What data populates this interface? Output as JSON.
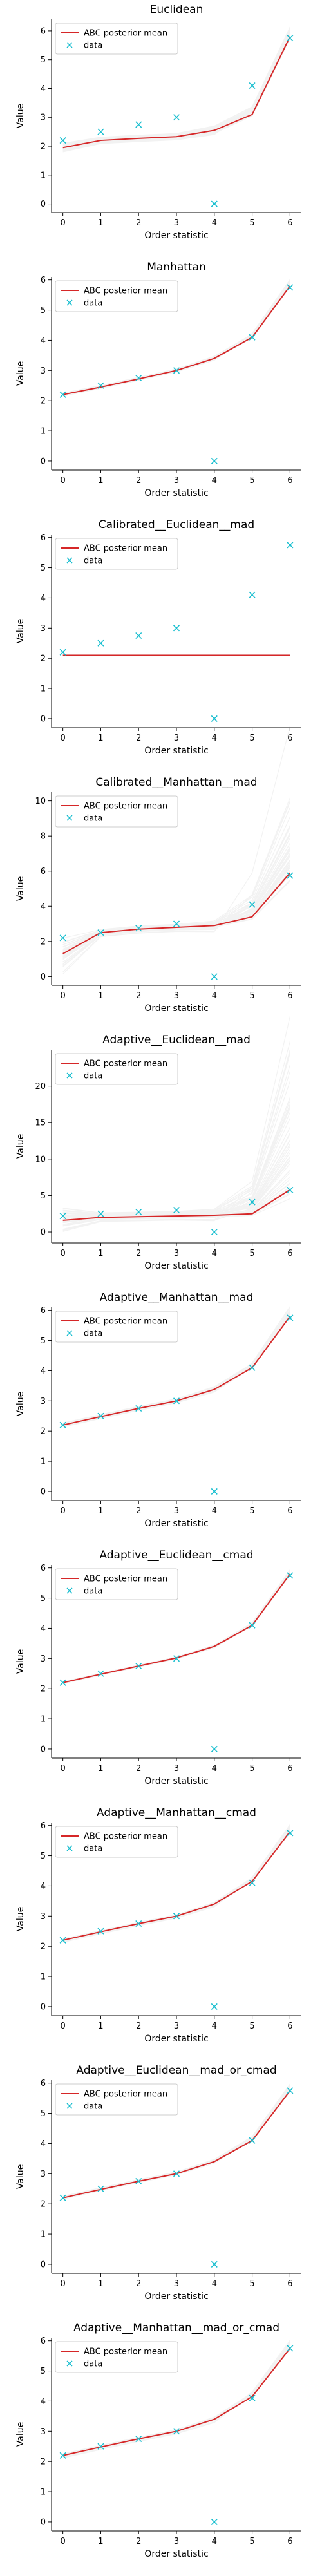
{
  "figure": {
    "legend_labels": [
      "ABC posterior mean",
      "data"
    ],
    "colors": {
      "posterior_mean": "#d62728",
      "data": "#17becf",
      "samples": "#555555",
      "axis": "#000000"
    }
  },
  "chart_data": [
    {
      "type": "line",
      "title": "Euclidean",
      "xlabel": "Order statistic",
      "ylabel": "Value",
      "x": [
        0,
        1,
        2,
        3,
        4,
        5,
        6
      ],
      "xlim": [
        -0.3,
        6.3
      ],
      "ylim": [
        -0.3,
        6.4
      ],
      "yticks": [
        0,
        1,
        2,
        3,
        4,
        5,
        6
      ],
      "grid": false,
      "legend": "top-left",
      "series": [
        {
          "name": "ABC posterior mean",
          "values": [
            1.95,
            2.2,
            2.27,
            2.33,
            2.55,
            3.1,
            5.8
          ]
        },
        {
          "name": "data",
          "marker": "x",
          "values": [
            2.2,
            2.5,
            2.75,
            3.0,
            0.0,
            4.1,
            5.75
          ]
        }
      ],
      "spread": [
        0.08,
        0.06,
        0.06,
        0.06,
        0.08,
        0.12,
        0.15
      ]
    },
    {
      "type": "line",
      "title": "Manhattan",
      "xlabel": "Order statistic",
      "ylabel": "Value",
      "x": [
        0,
        1,
        2,
        3,
        4,
        5,
        6
      ],
      "xlim": [
        -0.3,
        6.3
      ],
      "ylim": [
        -0.3,
        6.1
      ],
      "yticks": [
        0,
        1,
        2,
        3,
        4,
        5,
        6
      ],
      "grid": false,
      "legend": "top-left",
      "series": [
        {
          "name": "ABC posterior mean",
          "values": [
            2.2,
            2.45,
            2.72,
            3.0,
            3.4,
            4.1,
            5.8
          ]
        },
        {
          "name": "data",
          "marker": "x",
          "values": [
            2.2,
            2.5,
            2.75,
            3.0,
            0.0,
            4.1,
            5.75
          ]
        }
      ],
      "spread": [
        0.03,
        0.03,
        0.03,
        0.03,
        0.04,
        0.05,
        0.08
      ]
    },
    {
      "type": "line",
      "title": "Calibrated__Euclidean__mad",
      "xlabel": "Order statistic",
      "ylabel": "Value",
      "x": [
        0,
        1,
        2,
        3,
        4,
        5,
        6
      ],
      "xlim": [
        -0.3,
        6.3
      ],
      "ylim": [
        -0.3,
        6.1
      ],
      "yticks": [
        0,
        1,
        2,
        3,
        4,
        5,
        6
      ],
      "grid": false,
      "legend": "top-left",
      "series": [
        {
          "name": "ABC posterior mean",
          "values": [
            2.1,
            2.1,
            2.1,
            2.1,
            2.1,
            2.1,
            2.1
          ]
        },
        {
          "name": "data",
          "marker": "x",
          "values": [
            2.2,
            2.5,
            2.75,
            3.0,
            0.0,
            4.1,
            5.75
          ]
        }
      ],
      "spread": [
        0.01,
        0.01,
        0.01,
        0.01,
        0.01,
        0.01,
        0.01
      ]
    },
    {
      "type": "line",
      "title": "Calibrated__Manhattan__mad",
      "xlabel": "Order statistic",
      "ylabel": "Value",
      "x": [
        0,
        1,
        2,
        3,
        4,
        5,
        6
      ],
      "xlim": [
        -0.3,
        6.3
      ],
      "ylim": [
        -0.5,
        10.5
      ],
      "yticks": [
        0,
        2,
        4,
        6,
        8,
        10
      ],
      "grid": false,
      "legend": "top-left",
      "series": [
        {
          "name": "ABC posterior mean",
          "values": [
            1.3,
            2.5,
            2.7,
            2.8,
            2.9,
            3.4,
            5.9
          ]
        },
        {
          "name": "data",
          "marker": "x",
          "values": [
            2.2,
            2.5,
            2.75,
            3.0,
            0.0,
            4.1,
            5.75
          ]
        }
      ],
      "spread": [
        0.5,
        0.1,
        0.1,
        0.1,
        0.15,
        0.6,
        2.0
      ]
    },
    {
      "type": "line",
      "title": "Adaptive__Euclidean__mad",
      "xlabel": "Order statistic",
      "ylabel": "Value",
      "x": [
        0,
        1,
        2,
        3,
        4,
        5,
        6
      ],
      "xlim": [
        -0.3,
        6.3
      ],
      "ylim": [
        -1.5,
        25
      ],
      "yticks": [
        0,
        5,
        10,
        15,
        20
      ],
      "grid": false,
      "legend": "top-left",
      "series": [
        {
          "name": "ABC posterior mean",
          "values": [
            1.6,
            2.0,
            2.1,
            2.2,
            2.3,
            2.5,
            5.8
          ]
        },
        {
          "name": "data",
          "marker": "x",
          "values": [
            2.2,
            2.5,
            2.75,
            3.0,
            0.0,
            4.1,
            5.75
          ]
        }
      ],
      "spread": [
        0.8,
        0.3,
        0.3,
        0.3,
        0.4,
        1.5,
        8.0
      ]
    },
    {
      "type": "line",
      "title": "Adaptive__Manhattan__mad",
      "xlabel": "Order statistic",
      "ylabel": "Value",
      "x": [
        0,
        1,
        2,
        3,
        4,
        5,
        6
      ],
      "xlim": [
        -0.3,
        6.3
      ],
      "ylim": [
        -0.3,
        6.1
      ],
      "yticks": [
        0,
        1,
        2,
        3,
        4,
        5,
        6
      ],
      "grid": false,
      "legend": "top-left",
      "series": [
        {
          "name": "ABC posterior mean",
          "values": [
            2.2,
            2.48,
            2.75,
            3.0,
            3.38,
            4.1,
            5.8
          ]
        },
        {
          "name": "data",
          "marker": "x",
          "values": [
            2.2,
            2.5,
            2.75,
            3.0,
            0.0,
            4.1,
            5.75
          ]
        }
      ],
      "spread": [
        0.03,
        0.03,
        0.03,
        0.03,
        0.04,
        0.05,
        0.1
      ]
    },
    {
      "type": "line",
      "title": "Adaptive__Euclidean__cmad",
      "xlabel": "Order statistic",
      "ylabel": "Value",
      "x": [
        0,
        1,
        2,
        3,
        4,
        5,
        6
      ],
      "xlim": [
        -0.3,
        6.3
      ],
      "ylim": [
        -0.3,
        6.1
      ],
      "yticks": [
        0,
        1,
        2,
        3,
        4,
        5,
        6
      ],
      "grid": false,
      "legend": "top-left",
      "series": [
        {
          "name": "ABC posterior mean",
          "values": [
            2.2,
            2.48,
            2.75,
            3.02,
            3.4,
            4.1,
            5.8
          ]
        },
        {
          "name": "data",
          "marker": "x",
          "values": [
            2.2,
            2.5,
            2.75,
            3.0,
            0.0,
            4.1,
            5.75
          ]
        }
      ],
      "spread": [
        0.02,
        0.02,
        0.02,
        0.02,
        0.03,
        0.04,
        0.06
      ]
    },
    {
      "type": "line",
      "title": "Adaptive__Manhattan__cmad",
      "xlabel": "Order statistic",
      "ylabel": "Value",
      "x": [
        0,
        1,
        2,
        3,
        4,
        5,
        6
      ],
      "xlim": [
        -0.3,
        6.3
      ],
      "ylim": [
        -0.3,
        6.1
      ],
      "yticks": [
        0,
        1,
        2,
        3,
        4,
        5,
        6
      ],
      "grid": false,
      "legend": "top-left",
      "series": [
        {
          "name": "ABC posterior mean",
          "values": [
            2.2,
            2.48,
            2.75,
            3.0,
            3.4,
            4.15,
            5.8
          ]
        },
        {
          "name": "data",
          "marker": "x",
          "values": [
            2.2,
            2.5,
            2.75,
            3.0,
            0.0,
            4.1,
            5.75
          ]
        }
      ],
      "spread": [
        0.03,
        0.03,
        0.03,
        0.03,
        0.04,
        0.06,
        0.1
      ]
    },
    {
      "type": "line",
      "title": "Adaptive__Euclidean__mad_or_cmad",
      "xlabel": "Order statistic",
      "ylabel": "Value",
      "x": [
        0,
        1,
        2,
        3,
        4,
        5,
        6
      ],
      "xlim": [
        -0.3,
        6.3
      ],
      "ylim": [
        -0.3,
        6.1
      ],
      "yticks": [
        0,
        1,
        2,
        3,
        4,
        5,
        6
      ],
      "grid": false,
      "legend": "top-left",
      "series": [
        {
          "name": "ABC posterior mean",
          "values": [
            2.2,
            2.48,
            2.75,
            3.0,
            3.4,
            4.1,
            5.75
          ]
        },
        {
          "name": "data",
          "marker": "x",
          "values": [
            2.2,
            2.5,
            2.75,
            3.0,
            0.0,
            4.1,
            5.75
          ]
        }
      ],
      "spread": [
        0.03,
        0.03,
        0.03,
        0.03,
        0.04,
        0.06,
        0.1
      ]
    },
    {
      "type": "line",
      "title": "Adaptive__Manhattan__mad_or_cmad",
      "xlabel": "Order statistic",
      "ylabel": "Value",
      "x": [
        0,
        1,
        2,
        3,
        4,
        5,
        6
      ],
      "xlim": [
        -0.3,
        6.3
      ],
      "ylim": [
        -0.3,
        6.1
      ],
      "yticks": [
        0,
        1,
        2,
        3,
        4,
        5,
        6
      ],
      "grid": false,
      "legend": "top-left",
      "series": [
        {
          "name": "ABC posterior mean",
          "values": [
            2.2,
            2.48,
            2.75,
            3.0,
            3.4,
            4.15,
            5.75
          ]
        },
        {
          "name": "data",
          "marker": "x",
          "values": [
            2.2,
            2.5,
            2.75,
            3.0,
            0.0,
            4.1,
            5.75
          ]
        }
      ],
      "spread": [
        0.03,
        0.03,
        0.03,
        0.03,
        0.04,
        0.06,
        0.1
      ]
    }
  ]
}
